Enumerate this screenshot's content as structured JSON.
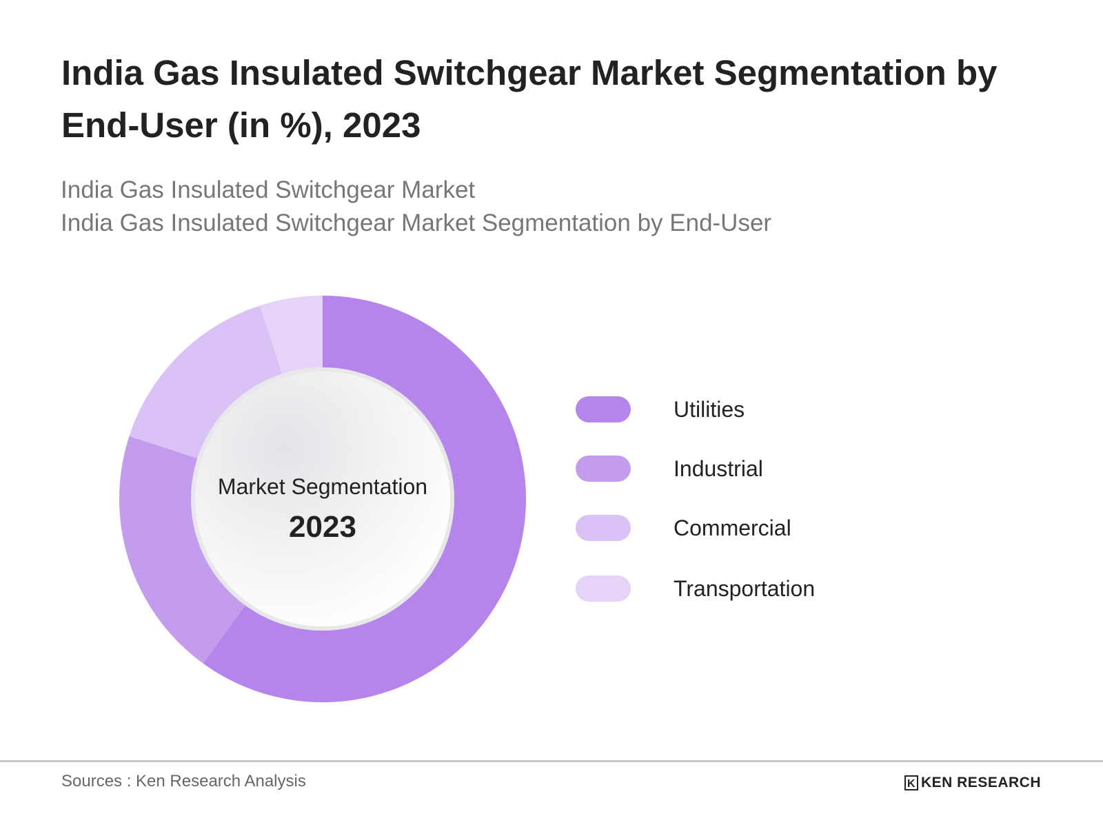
{
  "title": "India Gas Insulated Switchgear Market Segmentation by End-User (in %), 2023",
  "subtitles": [
    "India Gas Insulated Switchgear Market",
    "India Gas Insulated Switchgear Market Segmentation by End-User"
  ],
  "chart_data": {
    "type": "pie",
    "variant": "donut",
    "title": "India Gas Insulated Switchgear Market Segmentation by End-User (in %), 2023",
    "center_label": "Market Segmentation",
    "center_year": "2023",
    "categories": [
      "Utilities",
      "Industrial",
      "Commercial",
      "Transportation"
    ],
    "values": [
      60,
      20,
      15,
      5
    ],
    "colors": [
      "#b585eb",
      "#c49cee",
      "#dbc2f6",
      "#e5d3f8"
    ],
    "legend_position": "right"
  },
  "footer": {
    "source": "Sources : Ken Research Analysis",
    "logo_text": "KEN RESEARCH"
  }
}
